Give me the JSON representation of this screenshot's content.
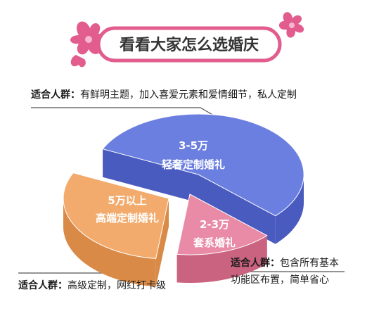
{
  "title": "看看大家怎么选婚庆",
  "colors": {
    "blue": "#6b7fe0",
    "blue_side": "#4a5bbf",
    "orange": "#f2ab6c",
    "orange_side": "#d98a47",
    "pink": "#e98aa6",
    "pink_side": "#c9637f",
    "title_pink": "#e25c8e",
    "line": "#555555"
  },
  "chart_data": {
    "type": "pie",
    "title": "看看大家怎么选婚庆",
    "slices": [
      {
        "label": "3-5万 轻奢定制婚礼",
        "lines": [
          "3-5万",
          "轻奢定制婚礼"
        ],
        "value": 55,
        "color": "#6b7fe0"
      },
      {
        "label": "2-3万 套系婚礼",
        "lines": [
          "2-3万",
          "套系婚礼"
        ],
        "value": 15,
        "color": "#e98aa6"
      },
      {
        "label": "5万以上 高端定制婚礼",
        "lines": [
          "5万以上",
          "高端定制婚礼"
        ],
        "value": 30,
        "color": "#f2ab6c"
      }
    ]
  },
  "annotations": {
    "top": {
      "key": "适合人群：",
      "text": "有鲜明主题，加入喜爱元素和爱情细节，私人定制"
    },
    "bottom_left": {
      "key": "适合人群：",
      "text": "高级定制，网红打卡级"
    },
    "bottom_right": {
      "key": "适合人群：",
      "line1": "包含所有基本",
      "line2": "功能区布置，简单省心"
    }
  }
}
